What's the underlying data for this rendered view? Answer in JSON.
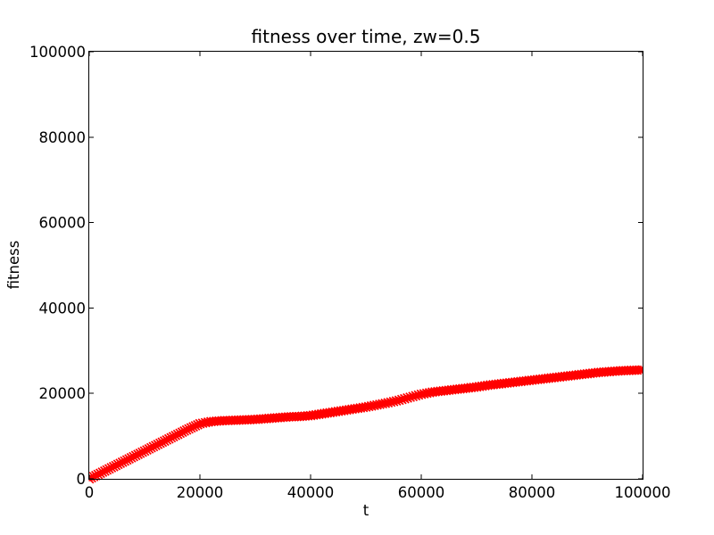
{
  "figure": {
    "background": "#ffffff",
    "frame_color": "#000000",
    "text_color": "#000000"
  },
  "chart_data": {
    "type": "scatter",
    "marker": "x",
    "series_name": "fitness",
    "series_color": "#ff0000",
    "title": "fitness over time, zw=0.5",
    "xlabel": "t",
    "ylabel": "fitness",
    "xlim": [
      0,
      100000
    ],
    "ylim": [
      0,
      100000
    ],
    "grid": false,
    "legend": false,
    "tick_direction": "in",
    "xticks": [
      0,
      20000,
      40000,
      60000,
      80000,
      100000
    ],
    "yticks": [
      0,
      20000,
      40000,
      60000,
      80000,
      100000
    ],
    "xtick_labels": [
      "0",
      "20000",
      "40000",
      "60000",
      "80000",
      "100000"
    ],
    "ytick_labels": [
      "0",
      "20000",
      "40000",
      "60000",
      "80000",
      "100000"
    ],
    "x": [
      0,
      2000,
      4000,
      6000,
      8000,
      10000,
      12000,
      14000,
      16000,
      18000,
      20000,
      22000,
      24000,
      26000,
      28000,
      30000,
      32000,
      34000,
      36000,
      38000,
      40000,
      42000,
      44000,
      46000,
      48000,
      50000,
      52000,
      54000,
      56000,
      58000,
      60000,
      62000,
      64000,
      66000,
      68000,
      70000,
      72000,
      74000,
      76000,
      78000,
      80000,
      82000,
      84000,
      86000,
      88000,
      90000,
      92000,
      94000,
      96000,
      98000,
      100000
    ],
    "y": [
      0,
      1300,
      2600,
      3900,
      5200,
      6500,
      7800,
      9100,
      10400,
      11700,
      12900,
      13400,
      13600,
      13700,
      13800,
      13900,
      14100,
      14300,
      14500,
      14600,
      14800,
      15200,
      15600,
      16000,
      16400,
      16800,
      17300,
      17800,
      18400,
      19100,
      19800,
      20300,
      20600,
      20900,
      21200,
      21500,
      21900,
      22200,
      22500,
      22800,
      23100,
      23400,
      23700,
      24000,
      24300,
      24600,
      24900,
      25100,
      25300,
      25400,
      25500
    ]
  }
}
